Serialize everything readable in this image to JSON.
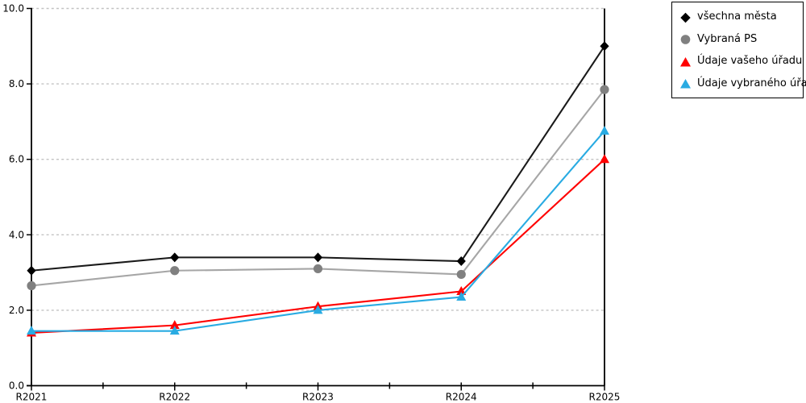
{
  "chart_data": {
    "type": "line",
    "categories": [
      "R2021",
      "R2022",
      "R2023",
      "R2024",
      "R2025"
    ],
    "series": [
      {
        "name": "všechna města",
        "marker": "diamond",
        "color": "#000000",
        "line_color": "#1a1a1a",
        "values": [
          3.05,
          3.4,
          3.4,
          3.3,
          9.0
        ]
      },
      {
        "name": "Vybraná PS",
        "marker": "circle",
        "color": "#808080",
        "line_color": "#a6a6a6",
        "values": [
          2.65,
          3.05,
          3.1,
          2.95,
          7.85
        ]
      },
      {
        "name": "Údaje vašeho úřadu",
        "marker": "triangle",
        "color": "#ff0000",
        "line_color": "#ff0000",
        "values": [
          1.4,
          1.6,
          2.1,
          2.5,
          6.0
        ]
      },
      {
        "name": "Údaje vybraného úřadu",
        "marker": "triangle",
        "color": "#29abe2",
        "line_color": "#29abe2",
        "values": [
          1.45,
          1.45,
          2.0,
          2.35,
          6.75
        ]
      }
    ],
    "ylim": [
      0,
      10
    ],
    "y_ticks": [
      0,
      2,
      4,
      6,
      8,
      10
    ],
    "y_tick_labels": [
      "0.0",
      "2.0",
      "4.0",
      "6.0",
      "8.0",
      "10.0"
    ],
    "grid": "horizontal-dashed",
    "grid_color": "#c3c3c3",
    "axis_color": "#000000",
    "background_color": "#ffffff",
    "legend_position": "top-right"
  }
}
